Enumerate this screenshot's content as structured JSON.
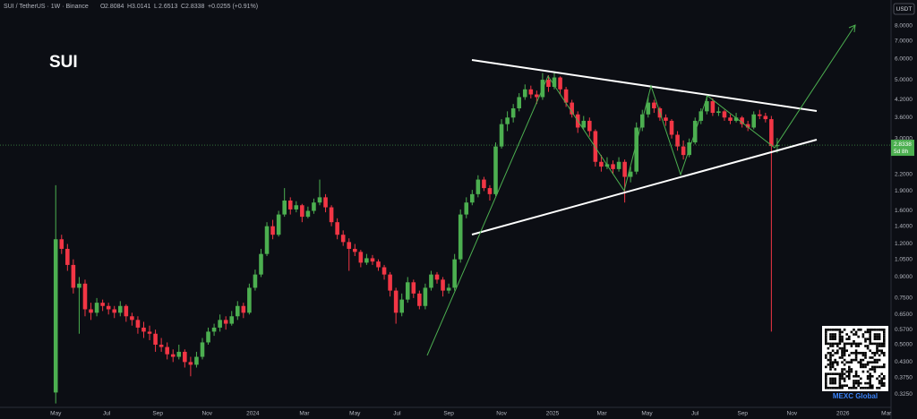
{
  "chart_data": {
    "type": "candlestick",
    "symbol_line": "SUI / TetherUS · 1W · Binance",
    "fields": [
      {
        "k": "O",
        "v": "2.8084"
      },
      {
        "k": "H",
        "v": "3.0141"
      },
      {
        "k": "L",
        "v": "2.6513"
      },
      {
        "k": "C",
        "v": "2.8338"
      }
    ],
    "change": "+0.0255 (+0.91%)",
    "title": "SUI",
    "currency": "USDT",
    "last_price_label": "2.8338",
    "countdown": "5d 8h",
    "watermark": "MEXC Global",
    "up_color": "#4caf50",
    "down_color": "#f23645",
    "log_scale": true,
    "grid": false,
    "ylim": [
      0.29,
      10.0
    ],
    "yticks": [
      {
        "value": 8,
        "label": "8.0000"
      },
      {
        "value": 7,
        "label": "7.0000"
      },
      {
        "value": 6,
        "label": "6.0000"
      },
      {
        "value": 5,
        "label": "5.0000"
      },
      {
        "value": 4.2,
        "label": "4.2000"
      },
      {
        "value": 3.6,
        "label": "3.6000"
      },
      {
        "value": 3,
        "label": "3.0000"
      },
      {
        "value": 2.2,
        "label": "2.2000"
      },
      {
        "value": 1.9,
        "label": "1.9000"
      },
      {
        "value": 1.6,
        "label": "1.6000"
      },
      {
        "value": 1.4,
        "label": "1.4000"
      },
      {
        "value": 1.2,
        "label": "1.2000"
      },
      {
        "value": 1.05,
        "label": "1.0500"
      },
      {
        "value": 0.9,
        "label": "0.9000"
      },
      {
        "value": 0.75,
        "label": "0.7500"
      },
      {
        "value": 0.65,
        "label": "0.6500"
      },
      {
        "value": 0.57,
        "label": "0.5700"
      },
      {
        "value": 0.5,
        "label": "0.5000"
      },
      {
        "value": 0.43,
        "label": "0.4300"
      },
      {
        "value": 0.375,
        "label": "0.3750"
      },
      {
        "value": 0.325,
        "label": "0.3250"
      }
    ],
    "xlim": [
      -9.5,
      142.4
    ],
    "xticks": [
      {
        "value": 0,
        "label": "May"
      },
      {
        "value": 8.7,
        "label": "Jul"
      },
      {
        "value": 17.4,
        "label": "Sep"
      },
      {
        "value": 25.8,
        "label": "Nov"
      },
      {
        "value": 33.6,
        "label": "2024"
      },
      {
        "value": 42.4,
        "label": "Mar"
      },
      {
        "value": 51,
        "label": "May"
      },
      {
        "value": 58.2,
        "label": "Jul"
      },
      {
        "value": 67,
        "label": "Sep"
      },
      {
        "value": 76,
        "label": "Nov"
      },
      {
        "value": 84.7,
        "label": "2025"
      },
      {
        "value": 93.1,
        "label": "Mar"
      },
      {
        "value": 100.8,
        "label": "May"
      },
      {
        "value": 109,
        "label": "Jul"
      },
      {
        "value": 117.1,
        "label": "Sep"
      },
      {
        "value": 125.5,
        "label": "Nov"
      },
      {
        "value": 134.2,
        "label": "2026"
      },
      {
        "value": 141.6,
        "label": "Mar"
      }
    ],
    "candles": [
      [
        0.33,
        2.0,
        0.3,
        1.25
      ],
      [
        1.25,
        1.3,
        1.1,
        1.15
      ],
      [
        1.15,
        1.2,
        0.95,
        1.0
      ],
      [
        1.0,
        1.05,
        0.78,
        0.82
      ],
      [
        0.82,
        0.9,
        0.55,
        0.85
      ],
      [
        0.85,
        0.88,
        0.64,
        0.68
      ],
      [
        0.68,
        0.72,
        0.62,
        0.66
      ],
      [
        0.66,
        0.75,
        0.64,
        0.72
      ],
      [
        0.72,
        0.74,
        0.67,
        0.7
      ],
      [
        0.7,
        0.72,
        0.65,
        0.68
      ],
      [
        0.68,
        0.7,
        0.63,
        0.66
      ],
      [
        0.66,
        0.73,
        0.64,
        0.7
      ],
      [
        0.7,
        0.71,
        0.61,
        0.64
      ],
      [
        0.64,
        0.66,
        0.59,
        0.62
      ],
      [
        0.62,
        0.64,
        0.55,
        0.58
      ],
      [
        0.58,
        0.61,
        0.53,
        0.56
      ],
      [
        0.56,
        0.59,
        0.52,
        0.55
      ],
      [
        0.55,
        0.57,
        0.47,
        0.5
      ],
      [
        0.5,
        0.53,
        0.47,
        0.49
      ],
      [
        0.49,
        0.51,
        0.44,
        0.46
      ],
      [
        0.46,
        0.48,
        0.43,
        0.45
      ],
      [
        0.45,
        0.5,
        0.44,
        0.47
      ],
      [
        0.47,
        0.48,
        0.41,
        0.43
      ],
      [
        0.43,
        0.45,
        0.38,
        0.42
      ],
      [
        0.42,
        0.47,
        0.41,
        0.45
      ],
      [
        0.45,
        0.53,
        0.44,
        0.51
      ],
      [
        0.51,
        0.58,
        0.5,
        0.56
      ],
      [
        0.56,
        0.6,
        0.54,
        0.58
      ],
      [
        0.58,
        0.65,
        0.56,
        0.62
      ],
      [
        0.62,
        0.64,
        0.57,
        0.6
      ],
      [
        0.6,
        0.67,
        0.59,
        0.64
      ],
      [
        0.64,
        0.73,
        0.62,
        0.7
      ],
      [
        0.7,
        0.72,
        0.63,
        0.66
      ],
      [
        0.66,
        0.85,
        0.65,
        0.82
      ],
      [
        0.82,
        0.96,
        0.8,
        0.92
      ],
      [
        0.92,
        1.15,
        0.9,
        1.1
      ],
      [
        1.1,
        1.45,
        1.08,
        1.4
      ],
      [
        1.4,
        1.48,
        1.25,
        1.3
      ],
      [
        1.3,
        1.6,
        1.28,
        1.55
      ],
      [
        1.55,
        1.95,
        1.52,
        1.75
      ],
      [
        1.75,
        1.8,
        1.55,
        1.62
      ],
      [
        1.62,
        1.74,
        1.58,
        1.68
      ],
      [
        1.68,
        1.7,
        1.45,
        1.52
      ],
      [
        1.52,
        1.66,
        1.5,
        1.6
      ],
      [
        1.6,
        1.78,
        1.56,
        1.72
      ],
      [
        1.72,
        2.1,
        1.68,
        1.8
      ],
      [
        1.8,
        1.85,
        1.58,
        1.65
      ],
      [
        1.65,
        1.68,
        1.4,
        1.45
      ],
      [
        1.45,
        1.5,
        1.25,
        1.3
      ],
      [
        1.3,
        1.35,
        1.18,
        1.22
      ],
      [
        1.22,
        1.26,
        0.95,
        1.15
      ],
      [
        1.15,
        1.2,
        1.08,
        1.12
      ],
      [
        1.12,
        1.14,
        0.98,
        1.02
      ],
      [
        1.02,
        1.1,
        1.0,
        1.06
      ],
      [
        1.06,
        1.09,
        1.0,
        1.03
      ],
      [
        1.03,
        1.05,
        0.95,
        0.98
      ],
      [
        0.98,
        1.0,
        0.88,
        0.92
      ],
      [
        0.92,
        0.94,
        0.76,
        0.8
      ],
      [
        0.8,
        0.82,
        0.6,
        0.66
      ],
      [
        0.66,
        0.78,
        0.64,
        0.74
      ],
      [
        0.74,
        0.9,
        0.72,
        0.86
      ],
      [
        0.86,
        0.88,
        0.75,
        0.78
      ],
      [
        0.78,
        0.8,
        0.68,
        0.7
      ],
      [
        0.7,
        0.85,
        0.68,
        0.82
      ],
      [
        0.82,
        0.95,
        0.8,
        0.92
      ],
      [
        0.92,
        0.94,
        0.85,
        0.88
      ],
      [
        0.88,
        0.9,
        0.76,
        0.8
      ],
      [
        0.8,
        0.85,
        0.78,
        0.82
      ],
      [
        0.82,
        1.1,
        0.8,
        1.05
      ],
      [
        1.05,
        1.62,
        1.02,
        1.55
      ],
      [
        1.55,
        1.8,
        1.5,
        1.72
      ],
      [
        1.72,
        1.92,
        1.68,
        1.85
      ],
      [
        1.85,
        2.18,
        1.8,
        2.1
      ],
      [
        2.1,
        2.15,
        1.9,
        1.95
      ],
      [
        1.95,
        2.0,
        1.75,
        1.85
      ],
      [
        1.85,
        2.9,
        1.82,
        2.8
      ],
      [
        2.8,
        3.55,
        2.75,
        3.4
      ],
      [
        3.4,
        3.8,
        3.2,
        3.6
      ],
      [
        3.6,
        4.05,
        3.45,
        3.9
      ],
      [
        3.9,
        4.45,
        3.8,
        4.3
      ],
      [
        4.3,
        4.8,
        4.2,
        4.6
      ],
      [
        4.6,
        4.75,
        4.25,
        4.4
      ],
      [
        4.4,
        4.55,
        4.05,
        4.3
      ],
      [
        4.3,
        5.3,
        4.2,
        5.0
      ],
      [
        5.0,
        5.2,
        4.5,
        4.7
      ],
      [
        4.7,
        5.35,
        4.6,
        5.1
      ],
      [
        5.1,
        5.15,
        4.4,
        4.6
      ],
      [
        4.6,
        4.7,
        3.95,
        4.1
      ],
      [
        4.1,
        4.2,
        3.6,
        3.7
      ],
      [
        3.7,
        3.8,
        3.15,
        3.3
      ],
      [
        3.3,
        3.65,
        3.25,
        3.5
      ],
      [
        3.5,
        3.6,
        3.05,
        3.2
      ],
      [
        3.2,
        3.25,
        2.35,
        2.45
      ],
      [
        2.45,
        2.6,
        2.25,
        2.35
      ],
      [
        2.35,
        2.55,
        2.3,
        2.4
      ],
      [
        2.4,
        2.48,
        2.2,
        2.3
      ],
      [
        2.3,
        2.55,
        2.25,
        2.45
      ],
      [
        2.45,
        2.5,
        1.72,
        2.15
      ],
      [
        2.15,
        2.35,
        2.05,
        2.25
      ],
      [
        2.25,
        3.45,
        2.2,
        3.3
      ],
      [
        3.3,
        3.85,
        3.2,
        3.7
      ],
      [
        3.7,
        4.3,
        3.6,
        4.1
      ],
      [
        4.1,
        4.2,
        3.75,
        3.9
      ],
      [
        3.9,
        3.95,
        3.5,
        3.6
      ],
      [
        3.6,
        3.7,
        3.35,
        3.5
      ],
      [
        3.5,
        3.55,
        3.0,
        3.1
      ],
      [
        3.1,
        3.2,
        2.7,
        2.8
      ],
      [
        2.8,
        2.95,
        2.5,
        2.6
      ],
      [
        2.6,
        3.0,
        2.55,
        2.9
      ],
      [
        2.9,
        3.6,
        2.85,
        3.5
      ],
      [
        3.5,
        3.9,
        3.4,
        3.8
      ],
      [
        3.8,
        4.35,
        3.7,
        4.15
      ],
      [
        4.15,
        4.25,
        3.65,
        3.75
      ],
      [
        3.75,
        3.95,
        3.65,
        3.8
      ],
      [
        3.8,
        3.85,
        3.5,
        3.6
      ],
      [
        3.6,
        3.7,
        3.4,
        3.5
      ],
      [
        3.5,
        3.75,
        3.45,
        3.6
      ],
      [
        3.6,
        3.65,
        3.3,
        3.4
      ],
      [
        3.4,
        3.5,
        3.2,
        3.3
      ],
      [
        3.3,
        3.8,
        3.25,
        3.7
      ],
      [
        3.7,
        3.85,
        3.55,
        3.65
      ],
      [
        3.65,
        3.75,
        3.45,
        3.55
      ],
      [
        3.55,
        3.65,
        0.56,
        2.81
      ],
      [
        2.8084,
        3.0141,
        2.6513,
        2.8338
      ]
    ]
  }
}
